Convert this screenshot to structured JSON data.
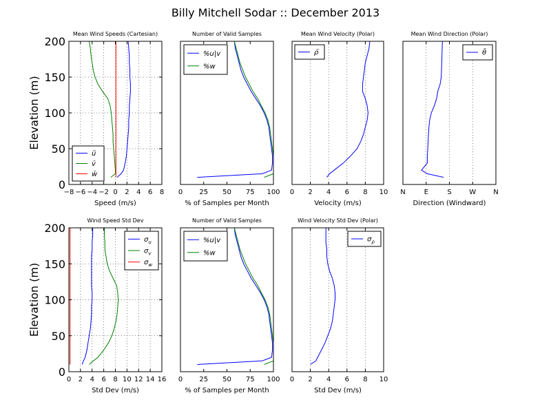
{
  "figure": {
    "title": "Billy Mitchell Sodar :: December 2013"
  },
  "colors": {
    "blue": "#0000ff",
    "green": "#008000",
    "red": "#ff0000"
  },
  "chart_data": [
    {
      "id": "p1",
      "type": "line",
      "title": "Mean Wind Speeds (Cartesian)",
      "xlabel": "Speed (m/s)",
      "ylabel": "Elevation (m)",
      "xlim": [
        -8,
        8
      ],
      "ylim": [
        0,
        200
      ],
      "xticks": [
        -8,
        -6,
        -4,
        -2,
        0,
        2,
        4,
        6,
        8
      ],
      "xtick_labels": [
        "−8",
        "−6",
        "−4",
        "−2",
        "0",
        "2",
        "4",
        "6",
        "8"
      ],
      "yticks": [
        0,
        50,
        100,
        150,
        200
      ],
      "ytick_labels": [
        "0",
        "50",
        "100",
        "150",
        "200"
      ],
      "grid": true,
      "legend": "lower-left",
      "series": [
        {
          "name": "ū",
          "color": "#0000ff",
          "x": [
            0.3,
            1.0,
            1.4,
            1.7,
            1.9,
            2.0,
            2.1,
            2.2,
            2.3,
            2.3,
            2.4,
            2.4,
            2.5,
            2.6,
            2.6,
            2.5,
            2.5,
            2.4,
            2.4,
            2.3,
            2.2
          ],
          "y": [
            10,
            15,
            20,
            30,
            40,
            50,
            60,
            70,
            80,
            90,
            100,
            110,
            120,
            130,
            140,
            150,
            160,
            170,
            180,
            190,
            200
          ]
        },
        {
          "name": "v̄",
          "color": "#008000",
          "x": [
            -0.8,
            0.0,
            0.0,
            -0.1,
            -0.2,
            -0.3,
            -0.4,
            -0.4,
            -0.5,
            -0.6,
            -0.7,
            -0.9,
            -1.3,
            -2.2,
            -3.0,
            -3.5,
            -3.8,
            -4.0,
            -4.2,
            -4.3,
            -4.5
          ],
          "y": [
            10,
            15,
            20,
            30,
            40,
            50,
            60,
            70,
            80,
            90,
            100,
            110,
            120,
            130,
            140,
            150,
            160,
            170,
            180,
            190,
            200
          ]
        },
        {
          "name": "w̄",
          "color": "#ff0000",
          "x": [
            0.1,
            0.1,
            0.1,
            0.1,
            0.1,
            0.1,
            0.1,
            0.1,
            0.1,
            0.1,
            0.1,
            0.1,
            0.1,
            0.1,
            0.1,
            0.1,
            0.1,
            0.1,
            0.1,
            0.1,
            0.1
          ],
          "y": [
            10,
            15,
            20,
            30,
            40,
            50,
            60,
            70,
            80,
            90,
            100,
            110,
            120,
            130,
            140,
            150,
            160,
            170,
            180,
            190,
            200
          ]
        }
      ]
    },
    {
      "id": "p2",
      "type": "line",
      "title": "Number of Valid Samples",
      "xlabel": "% of Samples per Month",
      "ylabel": "",
      "xlim": [
        0,
        100
      ],
      "ylim": [
        0,
        200
      ],
      "xticks": [
        0,
        25,
        50,
        75,
        100
      ],
      "xtick_labels": [
        "0",
        "25",
        "50",
        "75",
        "100"
      ],
      "yticks": [],
      "ytick_labels": [],
      "grid": false,
      "legend": "upper-left",
      "series": [
        {
          "name": "%u|v",
          "color": "#0000ff",
          "x": [
            18,
            88,
            98,
            99,
            99,
            98,
            97,
            96,
            95,
            93,
            90,
            86,
            81,
            76,
            72,
            68,
            65,
            63,
            61,
            59,
            58
          ],
          "y": [
            10,
            15,
            20,
            30,
            40,
            50,
            60,
            70,
            80,
            90,
            100,
            110,
            120,
            130,
            140,
            150,
            160,
            170,
            180,
            190,
            200
          ]
        },
        {
          "name": "%w",
          "color": "#008000",
          "x": [
            90,
            100,
            100,
            100,
            100,
            99,
            98,
            97,
            96,
            94,
            91,
            87,
            83,
            78,
            74,
            70,
            67,
            64,
            62,
            60,
            58
          ],
          "y": [
            10,
            15,
            20,
            30,
            40,
            50,
            60,
            70,
            80,
            90,
            100,
            110,
            120,
            130,
            140,
            150,
            160,
            170,
            180,
            190,
            200
          ]
        }
      ]
    },
    {
      "id": "p3",
      "type": "line",
      "title": "Mean Wind Velocity (Polar)",
      "xlabel": "Velocity (m/s)",
      "ylabel": "",
      "xlim": [
        0,
        10
      ],
      "ylim": [
        0,
        200
      ],
      "xticks": [
        0,
        2,
        4,
        6,
        8,
        10
      ],
      "xtick_labels": [
        "0",
        "2",
        "4",
        "6",
        "8",
        "10"
      ],
      "yticks": [],
      "ytick_labels": [],
      "grid": true,
      "legend": "upper-left",
      "series": [
        {
          "name": "ρ̄",
          "color": "#0000ff",
          "x": [
            3.8,
            4.1,
            4.6,
            5.6,
            6.4,
            7.1,
            7.5,
            7.8,
            8.0,
            8.2,
            8.3,
            8.2,
            8.0,
            7.7,
            7.7,
            7.8,
            7.9,
            8.0,
            8.2,
            8.4,
            8.5
          ],
          "y": [
            10,
            15,
            20,
            30,
            40,
            50,
            60,
            70,
            80,
            90,
            100,
            110,
            120,
            130,
            140,
            150,
            160,
            170,
            180,
            190,
            200
          ]
        }
      ]
    },
    {
      "id": "p4",
      "type": "line",
      "title": "Mean Wind Direction (Polar)",
      "xlabel": "Direction (Windward)",
      "ylabel": "",
      "xlim": [
        0,
        4
      ],
      "ylim": [
        0,
        200
      ],
      "xticks": [
        0,
        1,
        2,
        3,
        4
      ],
      "xtick_labels": [
        "N",
        "E",
        "S",
        "W",
        "N"
      ],
      "yticks": [],
      "ytick_labels": [],
      "grid": true,
      "legend": "upper-right",
      "series": [
        {
          "name": "θ̄",
          "color": "#0000ff",
          "x": [
            1.75,
            1.05,
            0.8,
            1.05,
            1.05,
            1.07,
            1.08,
            1.1,
            1.12,
            1.15,
            1.22,
            1.35,
            1.45,
            1.5,
            1.6,
            1.65,
            1.66,
            1.67,
            1.68,
            1.69,
            1.7
          ],
          "y": [
            10,
            15,
            20,
            30,
            40,
            50,
            60,
            70,
            80,
            90,
            100,
            110,
            120,
            130,
            140,
            150,
            160,
            170,
            180,
            190,
            200
          ]
        }
      ]
    },
    {
      "id": "p5",
      "type": "line",
      "title": "Wind Speed Std Dev",
      "xlabel": "Std Dev (m/s)",
      "ylabel": "Elevation (m)",
      "xlim": [
        0,
        16
      ],
      "ylim": [
        0,
        200
      ],
      "xticks": [
        0,
        2,
        4,
        6,
        8,
        10,
        12,
        14,
        16
      ],
      "xtick_labels": [
        "0",
        "2",
        "4",
        "6",
        "8",
        "10",
        "12",
        "14",
        "16"
      ],
      "yticks": [
        0,
        50,
        100,
        150,
        200
      ],
      "ytick_labels": [
        "0",
        "50",
        "100",
        "150",
        "200"
      ],
      "grid": true,
      "legend": "upper-right",
      "series": [
        {
          "name": "σ_u",
          "color": "#0000ff",
          "x": [
            2.3,
            2.5,
            2.8,
            3.1,
            3.3,
            3.5,
            3.7,
            3.8,
            3.9,
            3.9,
            4.0,
            4.0,
            3.9,
            3.9,
            3.9,
            3.9,
            3.9,
            4.0,
            4.0,
            4.1,
            4.1
          ],
          "y": [
            10,
            15,
            20,
            30,
            40,
            50,
            60,
            70,
            80,
            90,
            100,
            110,
            120,
            130,
            140,
            150,
            160,
            170,
            180,
            190,
            200
          ]
        },
        {
          "name": "σ_v",
          "color": "#008000",
          "x": [
            3.5,
            4.2,
            5.0,
            6.0,
            6.8,
            7.4,
            7.8,
            8.1,
            8.3,
            8.4,
            8.5,
            8.4,
            8.2,
            7.6,
            7.0,
            6.6,
            6.4,
            6.2,
            6.2,
            6.1,
            6.1
          ],
          "y": [
            10,
            15,
            20,
            30,
            40,
            50,
            60,
            70,
            80,
            90,
            100,
            110,
            120,
            130,
            140,
            150,
            160,
            170,
            180,
            190,
            200
          ]
        },
        {
          "name": "σ_w",
          "color": "#ff0000",
          "x": [
            0.2,
            0.2,
            0.2,
            0.2,
            0.2,
            0.2,
            0.2,
            0.2,
            0.2,
            0.2,
            0.2,
            0.2,
            0.2,
            0.2,
            0.2,
            0.2,
            0.2,
            0.2,
            0.2,
            0.2,
            0.2
          ],
          "y": [
            10,
            15,
            20,
            30,
            40,
            50,
            60,
            70,
            80,
            90,
            100,
            110,
            120,
            130,
            140,
            150,
            160,
            170,
            180,
            190,
            200
          ]
        }
      ]
    },
    {
      "id": "p6",
      "type": "line",
      "title": "Number of Valid Samples",
      "xlabel": "% of Samples per Month",
      "ylabel": "",
      "xlim": [
        0,
        100
      ],
      "ylim": [
        0,
        200
      ],
      "xticks": [
        0,
        25,
        50,
        75,
        100
      ],
      "xtick_labels": [
        "0",
        "25",
        "50",
        "75",
        "100"
      ],
      "yticks": [],
      "ytick_labels": [],
      "grid": false,
      "legend": "upper-left",
      "series": [
        {
          "name": "%u|v",
          "color": "#0000ff",
          "x": [
            18,
            88,
            98,
            99,
            99,
            98,
            97,
            96,
            95,
            93,
            90,
            86,
            81,
            76,
            72,
            68,
            65,
            63,
            61,
            59,
            58
          ],
          "y": [
            10,
            15,
            20,
            30,
            40,
            50,
            60,
            70,
            80,
            90,
            100,
            110,
            120,
            130,
            140,
            150,
            160,
            170,
            180,
            190,
            200
          ]
        },
        {
          "name": "%w",
          "color": "#008000",
          "x": [
            90,
            100,
            100,
            100,
            100,
            99,
            98,
            97,
            96,
            94,
            91,
            87,
            83,
            78,
            74,
            70,
            67,
            64,
            62,
            60,
            58
          ],
          "y": [
            10,
            15,
            20,
            30,
            40,
            50,
            60,
            70,
            80,
            90,
            100,
            110,
            120,
            130,
            140,
            150,
            160,
            170,
            180,
            190,
            200
          ]
        }
      ]
    },
    {
      "id": "p7",
      "type": "line",
      "title": "Wind Velocity Std Dev (Polar)",
      "xlabel": "Std Dev (m/s)",
      "ylabel": "",
      "xlim": [
        0,
        10
      ],
      "ylim": [
        0,
        200
      ],
      "xticks": [
        0,
        2,
        4,
        6,
        8,
        10
      ],
      "xtick_labels": [
        "0",
        "2",
        "4",
        "6",
        "8",
        "10"
      ],
      "yticks": [],
      "ytick_labels": [],
      "grid": true,
      "legend": "upper-right",
      "series": [
        {
          "name": "σ_ρ",
          "color": "#0000ff",
          "x": [
            2.0,
            2.6,
            2.8,
            3.2,
            3.6,
            3.9,
            4.2,
            4.4,
            4.5,
            4.6,
            4.7,
            4.7,
            4.6,
            4.4,
            4.1,
            3.9,
            3.8,
            3.8,
            3.7,
            3.7,
            3.7
          ],
          "y": [
            10,
            15,
            20,
            30,
            40,
            50,
            60,
            70,
            80,
            90,
            100,
            110,
            120,
            130,
            140,
            150,
            160,
            170,
            180,
            190,
            200
          ]
        }
      ]
    }
  ]
}
